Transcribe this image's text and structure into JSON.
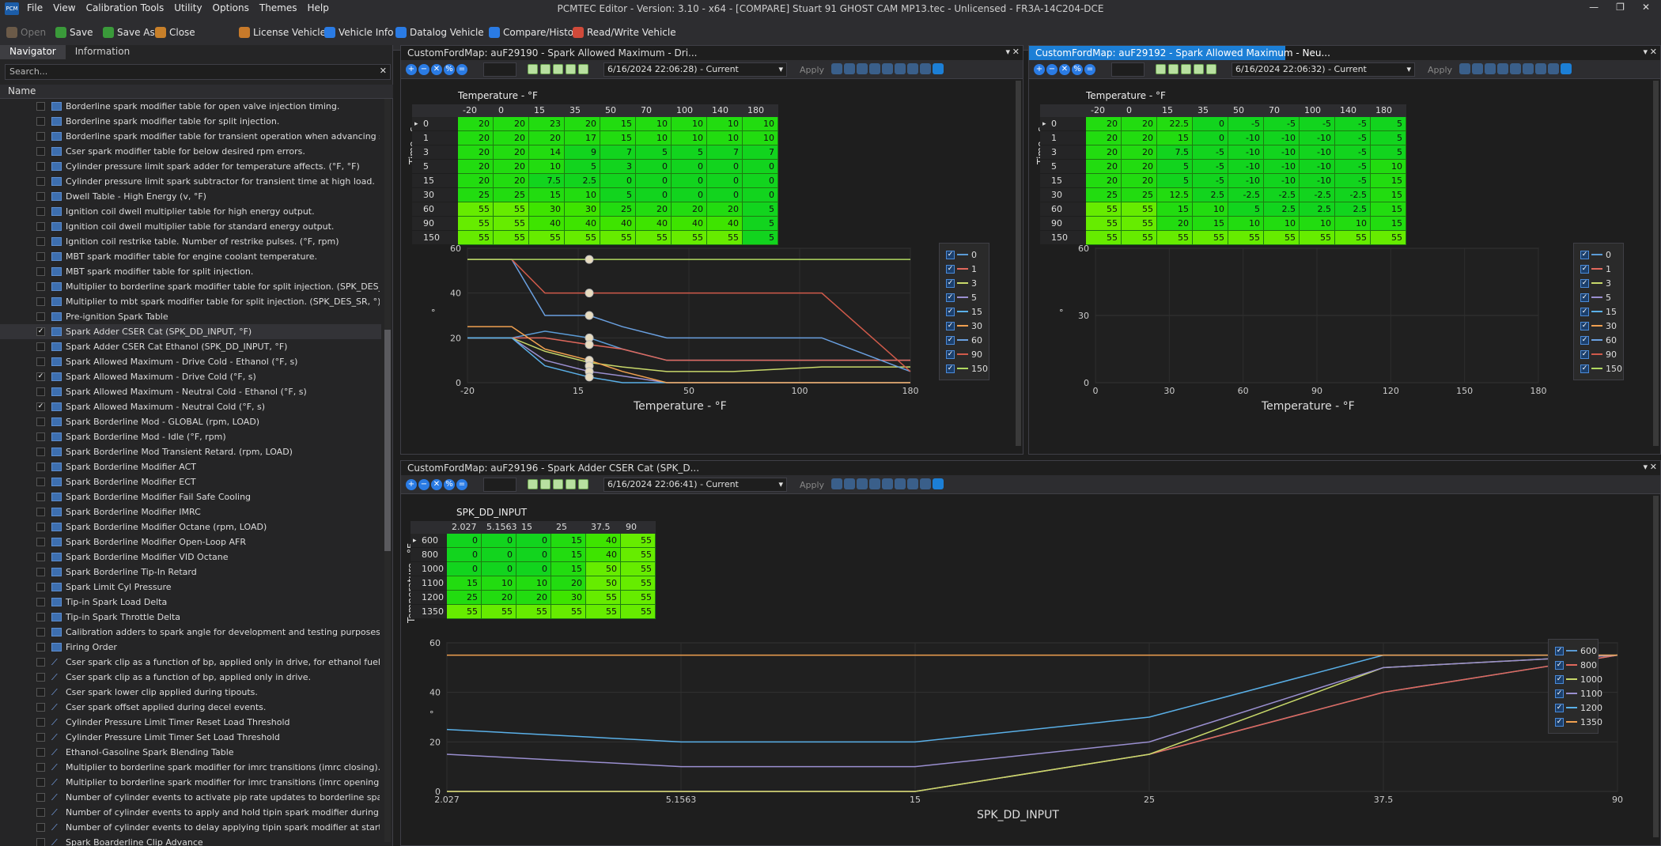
{
  "app": {
    "title": "PCMTEC Editor - Version: 3.10 - x64 - [COMPARE] Stuart 91 GHOST CAM MP13.tec - Unlicensed - FR3A-14C204-DCE",
    "logo": "PCM",
    "menu": [
      "File",
      "View",
      "Calibration Tools",
      "Utility",
      "Options",
      "Themes",
      "Help"
    ],
    "toolbar": [
      {
        "label": "Open",
        "icon": "folder-open-icon",
        "disabled": true
      },
      {
        "label": "Save",
        "icon": "save-icon"
      },
      {
        "label": "Save As",
        "icon": "save-as-icon"
      },
      {
        "label": "Close",
        "icon": "close-file-icon"
      },
      {
        "label": "License Vehicle",
        "icon": "license-icon"
      },
      {
        "label": "Vehicle Info",
        "icon": "info-icon"
      },
      {
        "label": "Datalog Vehicle",
        "icon": "datalog-icon"
      },
      {
        "label": "Compare/History",
        "icon": "compare-icon"
      },
      {
        "label": "Read/Write Vehicle",
        "icon": "read-write-icon"
      }
    ]
  },
  "navigator": {
    "tabs": [
      "Navigator",
      "Information"
    ],
    "search_placeholder": "Search...",
    "column": "Name",
    "items": [
      {
        "t": "Borderline spark modifier table for open valve injection timing.",
        "c": false,
        "i": "table"
      },
      {
        "t": "Borderline spark modifier table for split injection.",
        "c": false,
        "i": "table"
      },
      {
        "t": "Borderline spark modifier table for transient operation when advancing spark. (r...",
        "c": false,
        "i": "table"
      },
      {
        "t": "Cser spark modifier table for below desired rpm errors.",
        "c": false,
        "i": "table"
      },
      {
        "t": "Cylinder pressure limit spark adder for temperature affects. (°F, °F)",
        "c": false,
        "i": "table"
      },
      {
        "t": "Cylinder pressure limit spark subtractor for transient time at high load.",
        "c": false,
        "i": "table"
      },
      {
        "t": "Dwell Table - High Energy (v, °F)",
        "c": false,
        "i": "table"
      },
      {
        "t": "Ignition coil dwell multiplier table for high energy output.",
        "c": false,
        "i": "table"
      },
      {
        "t": "Ignition coil dwell multiplier table for standard energy output.",
        "c": false,
        "i": "table"
      },
      {
        "t": "Ignition coil restrike table.  Number of restrike pulses. (°F, rpm)",
        "c": false,
        "i": "table"
      },
      {
        "t": "MBT spark modifier table for engine coolant temperature.",
        "c": false,
        "i": "table"
      },
      {
        "t": "MBT spark modifier table for split injection.",
        "c": false,
        "i": "table"
      },
      {
        "t": "Multiplier to borderline spark modifier table for split injection. (SPK_DES_SR, °)",
        "c": false,
        "i": "table"
      },
      {
        "t": "Multiplier to mbt spark modifier table for split injection. (SPK_DES_SR, °)",
        "c": false,
        "i": "table"
      },
      {
        "t": "Pre-ignition Spark Table",
        "c": false,
        "i": "table"
      },
      {
        "t": "Spark Adder CSER Cat (SPK_DD_INPUT, °F)",
        "c": true,
        "i": "table",
        "sel": true
      },
      {
        "t": "Spark Adder CSER Cat Ethanol (SPK_DD_INPUT, °F)",
        "c": false,
        "i": "table"
      },
      {
        "t": "Spark Allowed Maximum - Drive Cold - Ethanol (°F, s)",
        "c": false,
        "i": "table"
      },
      {
        "t": "Spark Allowed Maximum - Drive Cold (°F, s)",
        "c": true,
        "i": "table"
      },
      {
        "t": "Spark Allowed Maximum - Neutral Cold - Ethanol (°F, s)",
        "c": false,
        "i": "table"
      },
      {
        "t": "Spark Allowed Maximum - Neutral Cold (°F, s)",
        "c": true,
        "i": "table"
      },
      {
        "t": "Spark Borderline Mod - GLOBAL (rpm, LOAD)",
        "c": false,
        "i": "table"
      },
      {
        "t": "Spark Borderline Mod - Idle (°F, rpm)",
        "c": false,
        "i": "table"
      },
      {
        "t": "Spark Borderline Mod Transient Retard. (rpm, LOAD)",
        "c": false,
        "i": "table"
      },
      {
        "t": "Spark Borderline Modifier ACT",
        "c": false,
        "i": "table"
      },
      {
        "t": "Spark Borderline Modifier ECT",
        "c": false,
        "i": "table"
      },
      {
        "t": "Spark Borderline Modifier Fail Safe Cooling",
        "c": false,
        "i": "table"
      },
      {
        "t": "Spark Borderline Modifier IMRC",
        "c": false,
        "i": "table"
      },
      {
        "t": "Spark Borderline Modifier Octane (rpm, LOAD)",
        "c": false,
        "i": "table"
      },
      {
        "t": "Spark Borderline Modifier Open-Loop AFR",
        "c": false,
        "i": "table"
      },
      {
        "t": "Spark Borderline Modifier VID Octane",
        "c": false,
        "i": "table"
      },
      {
        "t": "Spark Borderline Tip-In Retard",
        "c": false,
        "i": "table"
      },
      {
        "t": "Spark Limit Cyl Pressure",
        "c": false,
        "i": "table"
      },
      {
        "t": "Tip-in Spark Load Delta",
        "c": false,
        "i": "table"
      },
      {
        "t": "Tip-in Spark Throttle Delta",
        "c": false,
        "i": "table"
      },
      {
        "t": "Calibration adders to spark angle for development and testing purposes.  One per",
        "c": false,
        "i": "table"
      },
      {
        "t": "Firing Order",
        "c": false,
        "i": "table"
      },
      {
        "t": "Cser spark clip as a function of bp, applied only in drive, for ethanol fuel.",
        "c": false,
        "i": "curve"
      },
      {
        "t": "Cser spark clip as a function of bp, applied only in drive.",
        "c": false,
        "i": "curve"
      },
      {
        "t": "Cser spark lower clip applied during tipouts.",
        "c": false,
        "i": "curve"
      },
      {
        "t": "Cser spark offset applied during decel events.",
        "c": false,
        "i": "curve"
      },
      {
        "t": "Cylinder Pressure Limit Timer Reset Load Threshold",
        "c": false,
        "i": "curve"
      },
      {
        "t": "Cylinder Pressure Limit Timer Set Load Threshold",
        "c": false,
        "i": "curve"
      },
      {
        "t": "Ethanol-Gasoline Spark Blending Table",
        "c": false,
        "i": "curve"
      },
      {
        "t": "Multiplier to borderline spark modifier for imrc transitions (imrc closing).",
        "c": false,
        "i": "curve"
      },
      {
        "t": "Multiplier to borderline spark modifier for imrc transitions (imrc opening).",
        "c": false,
        "i": "curve"
      },
      {
        "t": "Number of cylinder events to activate pip rate updates to borderline spark for i",
        "c": false,
        "i": "curve"
      },
      {
        "t": "Number of cylinder events to apply and hold tipin spark modifier during tipin.",
        "c": false,
        "i": "curve"
      },
      {
        "t": "Number of cylinder events to delay applying tipin spark modifier at start of tip",
        "c": false,
        "i": "curve"
      },
      {
        "t": "Spark Boarderline Clip Advance",
        "c": false,
        "i": "curve"
      }
    ]
  },
  "panels": [
    {
      "tab": "CustomFordMap: auF29190 - Spark Allowed Maximum - Dri...",
      "active": false,
      "date": "6/16/2024 22:06:28) - Current",
      "apply": "Apply",
      "table_title": "Temperature - °F",
      "row_axis": "Time - s",
      "cols": [
        "-20",
        "0",
        "15",
        "35",
        "50",
        "70",
        "100",
        "140",
        "180"
      ],
      "rows": [
        "0",
        "1",
        "3",
        "5",
        "15",
        "30",
        "60",
        "90",
        "150"
      ],
      "cells": [
        [
          20,
          20,
          23,
          20,
          15,
          10,
          10,
          10,
          10
        ],
        [
          20,
          20,
          20,
          17,
          15,
          10,
          10,
          10,
          10
        ],
        [
          20,
          20,
          14,
          9,
          7,
          5,
          5,
          7,
          7
        ],
        [
          20,
          20,
          10,
          5,
          3,
          0,
          0,
          0,
          0
        ],
        [
          20,
          20,
          7.5,
          2.5,
          0,
          0,
          0,
          0,
          0
        ],
        [
          25,
          25,
          15,
          10,
          5,
          0,
          0,
          0,
          0
        ],
        [
          55,
          55,
          30,
          30,
          25,
          20,
          20,
          20,
          5
        ],
        [
          55,
          55,
          40,
          40,
          40,
          40,
          40,
          40,
          5
        ],
        [
          55,
          55,
          55,
          55,
          55,
          55,
          55,
          55,
          5
        ]
      ],
      "chart": {
        "x": [
          -20,
          0,
          15,
          35,
          50,
          70,
          100,
          140,
          180
        ],
        "xticks": [
          "-20",
          "15",
          "50",
          "100",
          "180"
        ],
        "xlabel": "Temperature - °F",
        "ylabel": "°",
        "ylim": [
          0,
          60
        ],
        "yticks": [
          "0",
          "20",
          "40",
          "60"
        ]
      }
    },
    {
      "tab": "CustomFordMap: auF29192 - Spark Allowed Maximum - Neu...",
      "active": true,
      "date": "6/16/2024 22:06:32) - Current",
      "apply": "Apply",
      "table_title": "Temperature - °F",
      "row_axis": "Time - s",
      "cols": [
        "-20",
        "0",
        "15",
        "35",
        "50",
        "70",
        "100",
        "140",
        "180"
      ],
      "rows": [
        "0",
        "1",
        "3",
        "5",
        "15",
        "30",
        "60",
        "90",
        "150"
      ],
      "cells": [
        [
          20,
          20,
          22.5,
          0,
          -5,
          -5,
          -5,
          -5,
          5
        ],
        [
          20,
          20,
          15,
          0,
          -10,
          -10,
          -10,
          -5,
          5
        ],
        [
          20,
          20,
          7.5,
          -5,
          -10,
          -10,
          -10,
          -5,
          5
        ],
        [
          20,
          20,
          5,
          -5,
          -10,
          -10,
          -10,
          -5,
          10
        ],
        [
          20,
          20,
          5,
          -5,
          -10,
          -10,
          -10,
          -5,
          15
        ],
        [
          25,
          25,
          12.5,
          2.5,
          -2.5,
          -2.5,
          -2.5,
          -2.5,
          15
        ],
        [
          55,
          55,
          15,
          10,
          5,
          2.5,
          2.5,
          2.5,
          15
        ],
        [
          55,
          55,
          20,
          15,
          10,
          10,
          10,
          10,
          15
        ],
        [
          55,
          55,
          55,
          55,
          55,
          55,
          55,
          55,
          55
        ]
      ],
      "chart": {
        "xticks": [
          "0",
          "30",
          "60",
          "90",
          "120",
          "150",
          "180"
        ],
        "xlabel": "Temperature - °F",
        "ylabel": "°",
        "yticks": [
          "0",
          "30",
          "60"
        ]
      }
    },
    {
      "tab": "CustomFordMap: auF29196 - Spark Adder CSER Cat (SPK_D...",
      "active": false,
      "date": "6/16/2024 22:06:41) - Current",
      "apply": "Apply",
      "table_title": "SPK_DD_INPUT",
      "row_axis": "Temperature - °F",
      "cols": [
        "2.027",
        "5.1563",
        "15",
        "25",
        "37.5",
        "90"
      ],
      "rows": [
        "600",
        "800",
        "1000",
        "1100",
        "1200",
        "1350"
      ],
      "cells": [
        [
          0,
          0,
          0,
          15,
          40,
          55
        ],
        [
          0,
          0,
          0,
          15,
          40,
          55
        ],
        [
          0,
          0,
          0,
          15,
          50,
          55
        ],
        [
          15,
          10,
          10,
          20,
          50,
          55
        ],
        [
          25,
          20,
          20,
          30,
          55,
          55
        ],
        [
          55,
          55,
          55,
          55,
          55,
          55
        ]
      ],
      "chart": {
        "xticks": [
          "2.027",
          "5.1563",
          "15",
          "25",
          "37.5",
          "90"
        ],
        "xlabel": "SPK_DD_INPUT",
        "ylabel": "°",
        "ylim": [
          0,
          60
        ],
        "yticks": [
          "0",
          "20",
          "40",
          "60"
        ]
      }
    }
  ],
  "chart_data": [
    {
      "type": "line",
      "title": "",
      "xlabel": "Temperature - °F",
      "ylabel": "°",
      "x": [
        -20,
        0,
        15,
        35,
        50,
        70,
        100,
        140,
        180
      ],
      "ylim": [
        0,
        60
      ],
      "series": [
        {
          "name": "0",
          "values": [
            20,
            20,
            23,
            20,
            15,
            10,
            10,
            10,
            10
          ]
        },
        {
          "name": "1",
          "values": [
            20,
            20,
            20,
            17,
            15,
            10,
            10,
            10,
            10
          ]
        },
        {
          "name": "3",
          "values": [
            20,
            20,
            14,
            9,
            7,
            5,
            5,
            7,
            7
          ]
        },
        {
          "name": "5",
          "values": [
            20,
            20,
            10,
            5,
            3,
            0,
            0,
            0,
            0
          ]
        },
        {
          "name": "15",
          "values": [
            20,
            20,
            7.5,
            2.5,
            0,
            0,
            0,
            0,
            0
          ]
        },
        {
          "name": "30",
          "values": [
            25,
            25,
            15,
            10,
            5,
            0,
            0,
            0,
            0
          ]
        },
        {
          "name": "60",
          "values": [
            55,
            55,
            30,
            30,
            25,
            20,
            20,
            20,
            5
          ]
        },
        {
          "name": "90",
          "values": [
            55,
            55,
            40,
            40,
            40,
            40,
            40,
            40,
            5
          ]
        },
        {
          "name": "150",
          "values": [
            55,
            55,
            55,
            55,
            55,
            55,
            55,
            55,
            55
          ]
        }
      ]
    },
    {
      "type": "line",
      "title": "",
      "xlabel": "Temperature - °F",
      "ylabel": "°",
      "ylim": [
        0,
        60
      ],
      "series": [
        {
          "name": "0",
          "values": []
        },
        {
          "name": "1",
          "values": []
        },
        {
          "name": "3",
          "values": []
        },
        {
          "name": "5",
          "values": []
        },
        {
          "name": "15",
          "values": []
        },
        {
          "name": "30",
          "values": []
        },
        {
          "name": "60",
          "values": []
        },
        {
          "name": "90",
          "values": []
        },
        {
          "name": "150",
          "values": []
        }
      ]
    },
    {
      "type": "line",
      "title": "",
      "xlabel": "SPK_DD_INPUT",
      "ylabel": "°",
      "categories": [
        "2.027",
        "5.1563",
        "15",
        "25",
        "37.5",
        "90"
      ],
      "ylim": [
        0,
        60
      ],
      "series": [
        {
          "name": "600",
          "values": [
            0,
            0,
            0,
            15,
            40,
            55
          ]
        },
        {
          "name": "800",
          "values": [
            0,
            0,
            0,
            15,
            40,
            55
          ]
        },
        {
          "name": "1000",
          "values": [
            0,
            0,
            0,
            15,
            50,
            55
          ]
        },
        {
          "name": "1100",
          "values": [
            15,
            10,
            10,
            20,
            50,
            55
          ]
        },
        {
          "name": "1200",
          "values": [
            25,
            20,
            20,
            30,
            55,
            55
          ]
        },
        {
          "name": "1350",
          "values": [
            55,
            55,
            55,
            55,
            55,
            55
          ]
        }
      ]
    }
  ],
  "colors": {
    "series": [
      "#5b9bd5",
      "#e0685c",
      "#c8d86a",
      "#9a8fd0",
      "#5ab0e8",
      "#f0a050",
      "#6aa0e0",
      "#d05a4a",
      "#b0d860"
    ],
    "accent": "#1c7fd6",
    "cell_hi": "#58e800",
    "cell_lo": "#10d410"
  }
}
